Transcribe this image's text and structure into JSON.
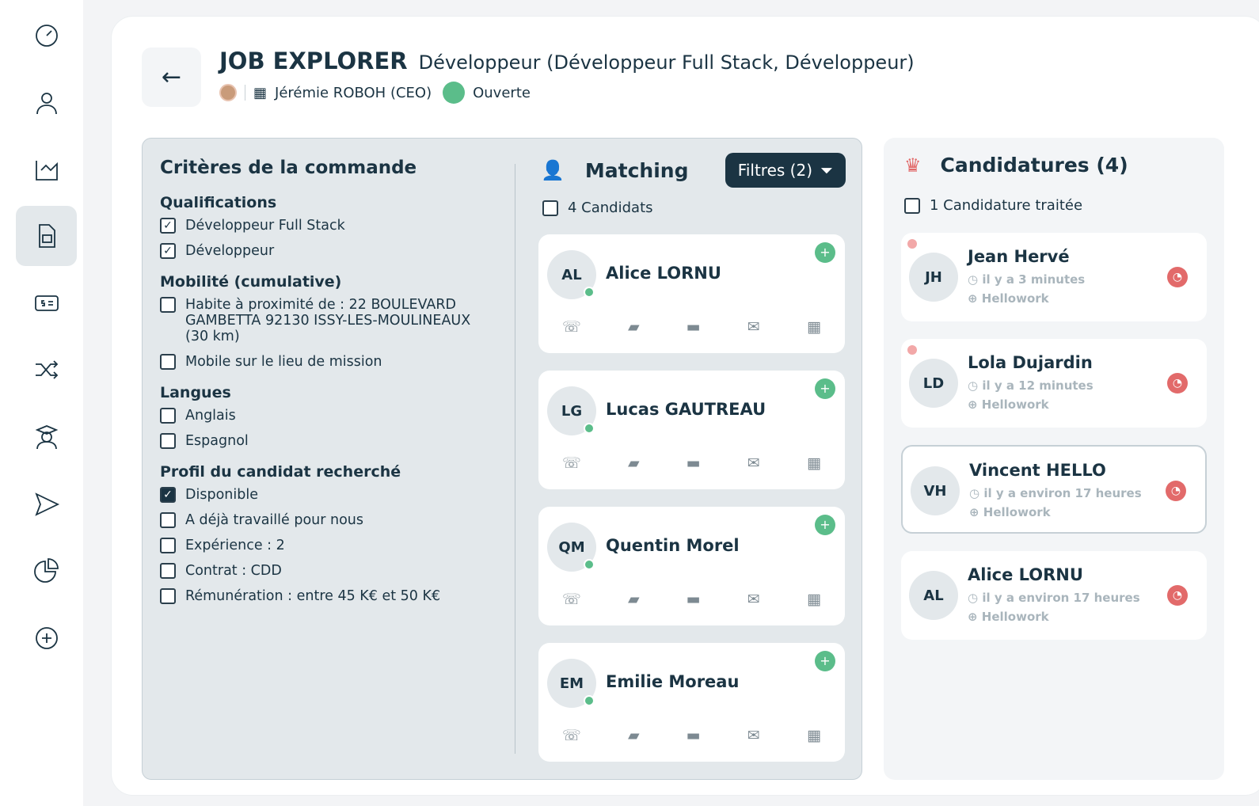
{
  "sidebar": {
    "items": [
      {
        "icon": "dashboard-icon"
      },
      {
        "icon": "user-icon"
      },
      {
        "icon": "chart-icon"
      },
      {
        "icon": "document-icon",
        "active": true
      },
      {
        "icon": "money-icon"
      },
      {
        "icon": "shuffle-icon"
      },
      {
        "icon": "graduate-icon"
      },
      {
        "icon": "send-icon"
      },
      {
        "icon": "pie-chart-icon"
      },
      {
        "icon": "add-icon"
      }
    ]
  },
  "header": {
    "back": "←",
    "title": "JOB EXPLORER",
    "subtitle": "Développeur (Développeur Full Stack, Développeur)",
    "contact": "Jérémie ROBOH (CEO)",
    "status": "Ouverte",
    "status_color": "#5bbd8a"
  },
  "criteria": {
    "title": "Critères de la commande",
    "sections": [
      {
        "title": "Qualifications",
        "items": [
          {
            "label": "Développeur Full Stack",
            "checked": true
          },
          {
            "label": "Développeur",
            "checked": true
          }
        ]
      },
      {
        "title": "Mobilité (cumulative)",
        "items": [
          {
            "label": "Habite à proximité de : 22 BOULEVARD GAMBETTA 92130 ISSY-LES-MOULINEAUX (30 km)",
            "checked": false
          },
          {
            "label": "Mobile sur le lieu de mission",
            "checked": false
          }
        ]
      },
      {
        "title": "Langues",
        "items": [
          {
            "label": "Anglais",
            "checked": false
          },
          {
            "label": "Espagnol",
            "checked": false
          }
        ]
      },
      {
        "title": "Profil du candidat recherché",
        "items": [
          {
            "label": "Disponible",
            "checked": true,
            "filled": true
          },
          {
            "label": "A déjà travaillé pour nous",
            "checked": false
          },
          {
            "label": "Expérience : 2",
            "checked": false
          },
          {
            "label": "Contrat : CDD",
            "checked": false
          },
          {
            "label": "Rémunération : entre 45 K€ et 50 K€",
            "checked": false
          }
        ]
      }
    ]
  },
  "matching": {
    "title": "Matching",
    "filters": "Filtres (2)",
    "count": "4 Candidats",
    "candidates": [
      {
        "initials": "AL",
        "name": "Alice LORNU"
      },
      {
        "initials": "LG",
        "name": "Lucas GAUTREAU"
      },
      {
        "initials": "QM",
        "name": "Quentin Morel"
      },
      {
        "initials": "EM",
        "name": "Emilie Moreau"
      }
    ]
  },
  "applications": {
    "title": "Candidatures (4)",
    "count": "1 Candidature traitée",
    "items": [
      {
        "initials": "JH",
        "name": "Jean Hervé",
        "time": "il y a 3 minutes",
        "source": "Hellowork",
        "new": true
      },
      {
        "initials": "LD",
        "name": "Lola Dujardin",
        "time": "il y a 12 minutes",
        "source": "Hellowork",
        "new": true
      },
      {
        "initials": "VH",
        "name": "Vincent HELLO",
        "time": "il y a environ 17 heures",
        "source": "Hellowork",
        "selected": true
      },
      {
        "initials": "AL",
        "name": "Alice LORNU",
        "time": "il y a environ 17 heures",
        "source": "Hellowork"
      }
    ]
  }
}
